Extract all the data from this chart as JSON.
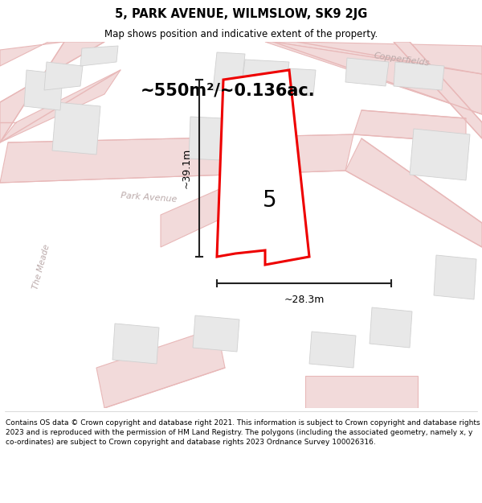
{
  "title": "5, PARK AVENUE, WILMSLOW, SK9 2JG",
  "subtitle": "Map shows position and indicative extent of the property.",
  "area_text": "~550m²/~0.136ac.",
  "label": "5",
  "dim_vertical": "~39.1m",
  "dim_horizontal": "~28.3m",
  "footer": "Contains OS data © Crown copyright and database right 2021. This information is subject to Crown copyright and database rights 2023 and is reproduced with the permission of HM Land Registry. The polygons (including the associated geometry, namely x, y co-ordinates) are subject to Crown copyright and database rights 2023 Ordnance Survey 100026316.",
  "bg_color": "#ffffff",
  "map_bg": "#f9f5f5",
  "road_fill": "#f2dada",
  "road_line": "#e8b8b8",
  "building_fill": "#e8e8e8",
  "building_edge": "#d0d0d0",
  "plot_fill": "#ffffff",
  "plot_edge": "#ee0000",
  "dim_color": "#222222",
  "street_color": "#bbaaaa",
  "copperfields": "Copperfields",
  "park_avenue": "Park Avenue",
  "the_meade": "The Meade"
}
